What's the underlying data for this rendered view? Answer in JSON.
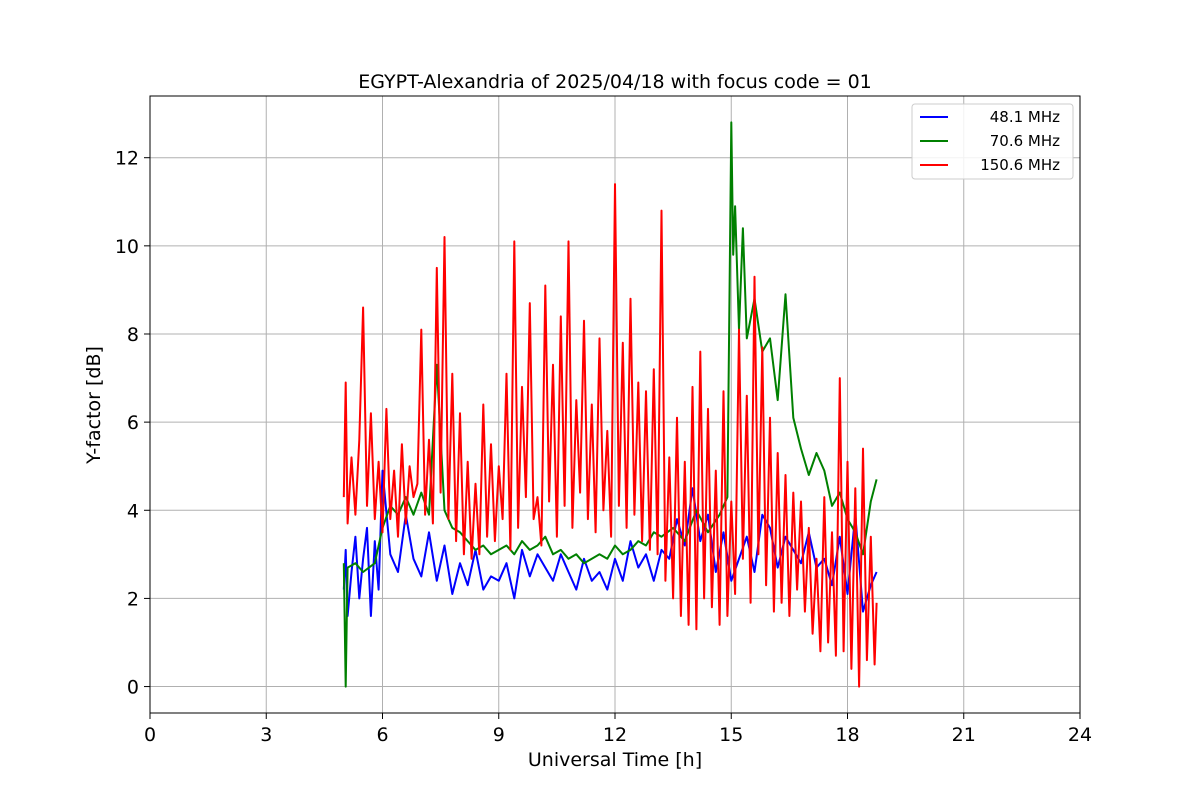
{
  "chart_data": {
    "type": "line",
    "title": "EGYPT-Alexandria of 2025/04/18 with focus code = 01",
    "xlabel": "Universal Time [h]",
    "ylabel": "Y-factor [dB]",
    "xlim": [
      0,
      24
    ],
    "ylim": [
      -0.6,
      13.4
    ],
    "xticks": [
      0,
      3,
      6,
      9,
      12,
      15,
      18,
      21,
      24
    ],
    "yticks": [
      0,
      2,
      4,
      6,
      8,
      10,
      12
    ],
    "grid": true,
    "legend_position": "top-right",
    "series": [
      {
        "name": "48.1 MHz",
        "color": "#0000ff",
        "x": [
          5.0,
          5.05,
          5.1,
          5.2,
          5.3,
          5.4,
          5.5,
          5.6,
          5.7,
          5.8,
          5.9,
          6.0,
          6.2,
          6.4,
          6.6,
          6.8,
          7.0,
          7.2,
          7.4,
          7.6,
          7.8,
          8.0,
          8.2,
          8.4,
          8.6,
          8.8,
          9.0,
          9.2,
          9.4,
          9.6,
          9.8,
          10.0,
          10.2,
          10.4,
          10.6,
          10.8,
          11.0,
          11.2,
          11.4,
          11.6,
          11.8,
          12.0,
          12.2,
          12.4,
          12.6,
          12.8,
          13.0,
          13.2,
          13.4,
          13.6,
          13.8,
          14.0,
          14.2,
          14.4,
          14.6,
          14.8,
          15.0,
          15.2,
          15.4,
          15.6,
          15.8,
          16.0,
          16.2,
          16.4,
          16.6,
          16.8,
          17.0,
          17.2,
          17.4,
          17.6,
          17.8,
          18.0,
          18.2,
          18.4,
          18.6,
          18.75
        ],
        "y": [
          2.2,
          3.1,
          1.6,
          2.6,
          3.4,
          2.0,
          2.9,
          3.6,
          1.6,
          3.3,
          2.2,
          4.9,
          3.0,
          2.6,
          3.9,
          2.9,
          2.5,
          3.5,
          2.4,
          3.2,
          2.1,
          2.8,
          2.3,
          3.1,
          2.2,
          2.5,
          2.4,
          2.8,
          2.0,
          3.1,
          2.5,
          3.0,
          2.7,
          2.4,
          3.0,
          2.6,
          2.2,
          2.9,
          2.4,
          2.6,
          2.2,
          2.9,
          2.4,
          3.3,
          2.7,
          3.0,
          2.4,
          3.1,
          2.9,
          3.8,
          3.2,
          4.5,
          3.3,
          3.9,
          2.6,
          3.5,
          2.4,
          2.9,
          3.4,
          2.6,
          3.9,
          3.6,
          2.7,
          3.4,
          3.1,
          2.8,
          3.5,
          2.7,
          2.9,
          2.3,
          3.4,
          2.1,
          3.9,
          1.7,
          2.3,
          2.6
        ]
      },
      {
        "name": "70.6 MHz",
        "color": "#008000",
        "x": [
          5.0,
          5.05,
          5.1,
          5.3,
          5.5,
          5.8,
          6.0,
          6.2,
          6.4,
          6.6,
          6.8,
          7.0,
          7.2,
          7.4,
          7.6,
          7.8,
          8.0,
          8.2,
          8.4,
          8.6,
          8.8,
          9.0,
          9.2,
          9.4,
          9.6,
          9.8,
          10.0,
          10.2,
          10.4,
          10.6,
          10.8,
          11.0,
          11.2,
          11.4,
          11.6,
          11.8,
          12.0,
          12.2,
          12.4,
          12.6,
          12.8,
          13.0,
          13.2,
          13.5,
          13.8,
          14.1,
          14.4,
          14.7,
          14.9,
          15.0,
          15.05,
          15.1,
          15.2,
          15.3,
          15.4,
          15.6,
          15.8,
          16.0,
          16.2,
          16.4,
          16.6,
          16.8,
          17.0,
          17.2,
          17.4,
          17.6,
          17.8,
          18.0,
          18.2,
          18.4,
          18.6,
          18.75
        ],
        "y": [
          2.8,
          0.0,
          2.7,
          2.8,
          2.6,
          2.8,
          3.6,
          4.1,
          3.9,
          4.3,
          3.9,
          4.4,
          3.9,
          7.3,
          4.0,
          3.6,
          3.5,
          3.3,
          3.1,
          3.2,
          3.0,
          3.1,
          3.2,
          3.0,
          3.3,
          3.1,
          3.2,
          3.4,
          3.0,
          3.1,
          2.9,
          3.0,
          2.8,
          2.9,
          3.0,
          2.9,
          3.2,
          3.0,
          3.1,
          3.3,
          3.2,
          3.5,
          3.4,
          3.6,
          3.3,
          4.0,
          3.5,
          3.9,
          4.3,
          12.8,
          9.8,
          10.9,
          8.1,
          10.4,
          7.9,
          8.8,
          7.6,
          7.9,
          6.5,
          8.9,
          6.1,
          5.4,
          4.8,
          5.3,
          4.9,
          4.1,
          4.4,
          3.8,
          3.5,
          3.0,
          4.2,
          4.7
        ]
      },
      {
        "name": "150.6 MHz",
        "color": "#ff0000",
        "x": [
          5.0,
          5.05,
          5.1,
          5.2,
          5.3,
          5.4,
          5.5,
          5.6,
          5.7,
          5.8,
          5.9,
          6.0,
          6.1,
          6.2,
          6.3,
          6.4,
          6.5,
          6.6,
          6.7,
          6.8,
          6.9,
          7.0,
          7.1,
          7.2,
          7.3,
          7.4,
          7.5,
          7.6,
          7.7,
          7.8,
          7.9,
          8.0,
          8.1,
          8.2,
          8.3,
          8.4,
          8.5,
          8.6,
          8.7,
          8.8,
          8.9,
          9.0,
          9.1,
          9.2,
          9.3,
          9.4,
          9.5,
          9.6,
          9.7,
          9.8,
          9.9,
          10.0,
          10.1,
          10.2,
          10.3,
          10.4,
          10.5,
          10.6,
          10.7,
          10.8,
          10.9,
          11.0,
          11.1,
          11.2,
          11.3,
          11.4,
          11.5,
          11.6,
          11.7,
          11.8,
          11.9,
          12.0,
          12.1,
          12.2,
          12.3,
          12.4,
          12.5,
          12.6,
          12.7,
          12.8,
          12.9,
          13.0,
          13.1,
          13.2,
          13.3,
          13.4,
          13.5,
          13.6,
          13.7,
          13.8,
          13.9,
          14.0,
          14.1,
          14.2,
          14.3,
          14.4,
          14.5,
          14.6,
          14.7,
          14.8,
          14.9,
          15.0,
          15.1,
          15.2,
          15.3,
          15.4,
          15.5,
          15.6,
          15.7,
          15.8,
          15.9,
          16.0,
          16.1,
          16.2,
          16.3,
          16.4,
          16.5,
          16.6,
          16.7,
          16.8,
          16.9,
          17.0,
          17.1,
          17.2,
          17.3,
          17.4,
          17.5,
          17.6,
          17.7,
          17.8,
          17.9,
          18.0,
          18.1,
          18.2,
          18.3,
          18.4,
          18.5,
          18.6,
          18.7,
          18.75
        ],
        "y": [
          4.3,
          6.9,
          3.7,
          5.2,
          3.9,
          5.6,
          8.6,
          4.1,
          6.2,
          3.8,
          5.1,
          3.5,
          6.3,
          3.8,
          4.9,
          3.4,
          5.5,
          3.7,
          5.0,
          4.3,
          4.6,
          8.1,
          3.9,
          5.6,
          3.7,
          9.5,
          4.4,
          10.2,
          3.8,
          7.1,
          3.3,
          6.2,
          3.0,
          5.1,
          2.9,
          4.6,
          3.0,
          6.4,
          3.4,
          5.5,
          3.3,
          5.0,
          3.8,
          7.1,
          3.1,
          10.1,
          3.6,
          6.8,
          4.3,
          8.7,
          3.8,
          4.3,
          3.2,
          9.1,
          4.2,
          7.3,
          3.4,
          8.4,
          4.1,
          10.1,
          3.6,
          6.5,
          4.4,
          8.3,
          3.8,
          6.4,
          3.5,
          7.9,
          4.0,
          5.8,
          3.4,
          11.4,
          4.1,
          7.8,
          3.6,
          8.8,
          3.9,
          6.9,
          3.3,
          6.7,
          3.1,
          7.2,
          3.0,
          10.8,
          2.4,
          5.2,
          2.0,
          6.1,
          1.6,
          5.1,
          1.4,
          6.8,
          1.3,
          7.6,
          2.0,
          6.3,
          1.8,
          4.9,
          1.4,
          6.7,
          1.6,
          4.2,
          2.1,
          8.1,
          2.9,
          6.6,
          1.9,
          9.3,
          3.0,
          7.7,
          2.3,
          6.1,
          1.7,
          5.3,
          1.9,
          4.8,
          1.6,
          4.4,
          2.2,
          4.2,
          1.7,
          3.6,
          1.2,
          2.9,
          0.8,
          4.3,
          1.0,
          3.5,
          0.7,
          7.0,
          0.8,
          5.1,
          0.4,
          4.5,
          0.0,
          5.4,
          0.6,
          3.4,
          0.5,
          1.9
        ]
      }
    ]
  }
}
